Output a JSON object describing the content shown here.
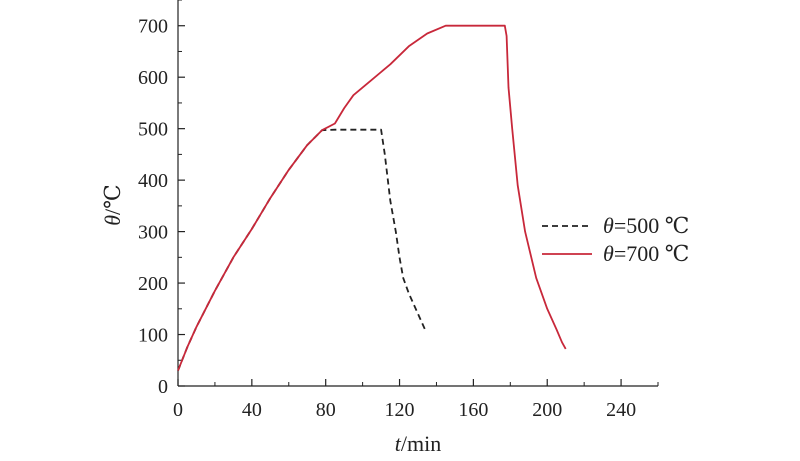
{
  "chart_data": {
    "type": "line",
    "xlabel_var": "t",
    "xlabel_unit": "/min",
    "ylabel_var": "θ",
    "ylabel_unit": "/℃",
    "xlim": [
      0,
      260
    ],
    "ylim": [
      0,
      750
    ],
    "xticks": [
      0,
      40,
      80,
      120,
      160,
      200,
      240
    ],
    "yticks": [
      0,
      100,
      200,
      300,
      400,
      500,
      600,
      700
    ],
    "legend_position": "right",
    "grid": false,
    "series": [
      {
        "name_var": "θ",
        "name_rest": "=500 ℃",
        "color": "#222222",
        "style": "dashed",
        "points": [
          [
            0,
            30
          ],
          [
            5,
            75
          ],
          [
            10,
            115
          ],
          [
            20,
            185
          ],
          [
            30,
            250
          ],
          [
            40,
            305
          ],
          [
            50,
            365
          ],
          [
            60,
            420
          ],
          [
            70,
            468
          ],
          [
            78,
            497
          ],
          [
            85,
            498
          ],
          [
            95,
            498
          ],
          [
            105,
            498
          ],
          [
            110,
            498
          ],
          [
            112,
            450
          ],
          [
            115,
            360
          ],
          [
            118,
            300
          ],
          [
            120,
            250
          ],
          [
            122,
            210
          ],
          [
            125,
            180
          ],
          [
            130,
            140
          ],
          [
            134,
            108
          ]
        ]
      },
      {
        "name_var": "θ",
        "name_rest": "=700 ℃",
        "color": "#c8283a",
        "style": "solid",
        "points": [
          [
            0,
            30
          ],
          [
            5,
            75
          ],
          [
            10,
            115
          ],
          [
            20,
            185
          ],
          [
            30,
            250
          ],
          [
            40,
            305
          ],
          [
            50,
            365
          ],
          [
            60,
            420
          ],
          [
            70,
            468
          ],
          [
            78,
            497
          ],
          [
            85,
            510
          ],
          [
            90,
            540
          ],
          [
            95,
            565
          ],
          [
            105,
            595
          ],
          [
            115,
            625
          ],
          [
            125,
            660
          ],
          [
            135,
            685
          ],
          [
            145,
            700
          ],
          [
            160,
            700
          ],
          [
            170,
            700
          ],
          [
            177,
            700
          ],
          [
            178,
            680
          ],
          [
            179,
            580
          ],
          [
            181,
            500
          ],
          [
            184,
            390
          ],
          [
            188,
            300
          ],
          [
            194,
            210
          ],
          [
            200,
            150
          ],
          [
            205,
            110
          ],
          [
            208,
            85
          ],
          [
            210,
            72
          ]
        ]
      }
    ]
  }
}
